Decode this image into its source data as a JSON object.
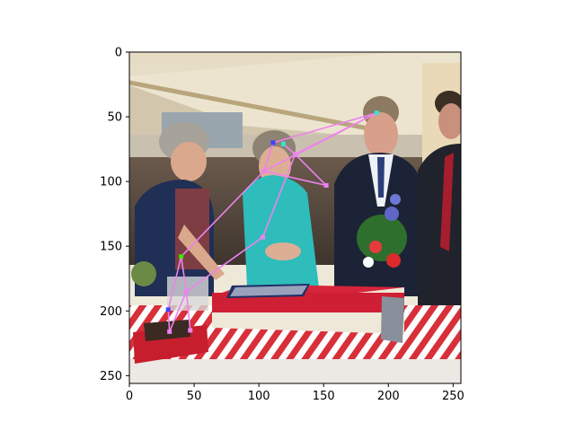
{
  "chart_data": {
    "type": "scatter",
    "title": "",
    "xlabel": "",
    "ylabel": "",
    "xlim": [
      0,
      256
    ],
    "ylim": [
      256,
      0
    ],
    "y_inverted": true,
    "grid": false,
    "background": "photo of people gathered around a flag-decorated cake under a tent",
    "x_ticks": [
      "0",
      "50",
      "100",
      "150",
      "200",
      "250"
    ],
    "y_ticks": [
      "0",
      "50",
      "100",
      "150",
      "200",
      "250"
    ],
    "series": [
      {
        "color": "#ee82ee",
        "points": [
          {
            "x": 191,
            "y": 47,
            "color": "#40e0d0"
          },
          {
            "x": 119,
            "y": 71,
            "color": "#40e0d0"
          },
          {
            "x": 111,
            "y": 70,
            "color": "#4040ff"
          },
          {
            "x": 128,
            "y": 79,
            "color": "#ee82ee"
          },
          {
            "x": 104,
            "y": 92,
            "color": "#ee82ee"
          },
          {
            "x": 152,
            "y": 103,
            "color": "#ee82ee"
          },
          {
            "x": 103,
            "y": 143,
            "color": "#ee82ee"
          },
          {
            "x": 40,
            "y": 158,
            "color": "#40e000"
          },
          {
            "x": 44,
            "y": 185,
            "color": "#ee82ee"
          },
          {
            "x": 30,
            "y": 199,
            "color": "#4040ff"
          },
          {
            "x": 31,
            "y": 216,
            "color": "#ee82ee"
          },
          {
            "x": 47,
            "y": 215,
            "color": "#ee82ee"
          }
        ],
        "segments": [
          [
            0,
            2
          ],
          [
            0,
            3
          ],
          [
            0,
            4
          ],
          [
            1,
            3
          ],
          [
            2,
            4
          ],
          [
            3,
            6
          ],
          [
            4,
            7
          ],
          [
            4,
            5
          ],
          [
            5,
            3
          ],
          [
            6,
            8
          ],
          [
            7,
            8
          ],
          [
            8,
            10
          ],
          [
            8,
            11
          ],
          [
            7,
            9
          ],
          [
            9,
            10
          ]
        ]
      }
    ]
  }
}
